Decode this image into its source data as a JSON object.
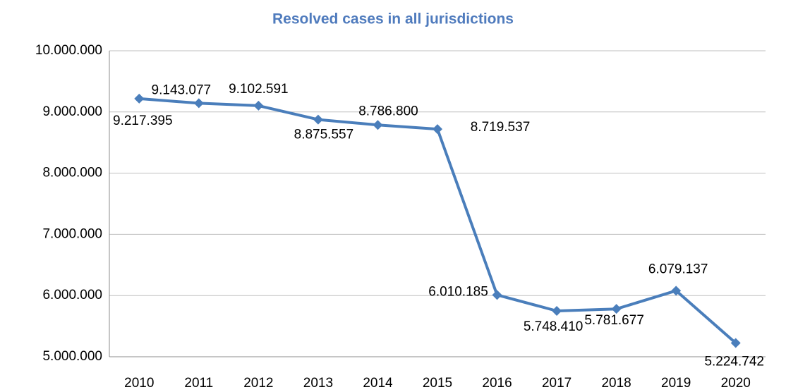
{
  "chart_data": {
    "type": "line",
    "title": "Resolved cases in all jurisdictions",
    "categories": [
      "2010",
      "2011",
      "2012",
      "2013",
      "2014",
      "2015",
      "2016",
      "2017",
      "2018",
      "2019",
      "2020"
    ],
    "series": [
      {
        "name": "Resolved cases",
        "color": "#4a7ebb",
        "values": [
          9217395,
          9143077,
          9102591,
          8875557,
          8786800,
          8719537,
          6010185,
          5748410,
          5781677,
          6079137,
          5224742
        ],
        "value_labels": [
          "9.217.395",
          "9.143.077",
          "9.102.591",
          "8.875.557",
          "8.786.800",
          "8.719.537",
          "6.010.185",
          "5.748.410",
          "5.781.677",
          "6.079.137",
          "5.224.742"
        ]
      }
    ],
    "ylim": [
      5000000,
      10000000
    ],
    "yticks": [
      {
        "value": 5000000,
        "label": "5.000.000"
      },
      {
        "value": 6000000,
        "label": "6.000.000"
      },
      {
        "value": 7000000,
        "label": "7.000.000"
      },
      {
        "value": 8000000,
        "label": "8.000.000"
      },
      {
        "value": 9000000,
        "label": "9.000.000"
      },
      {
        "value": 10000000,
        "label": "10.000.000"
      }
    ],
    "grid": true
  }
}
